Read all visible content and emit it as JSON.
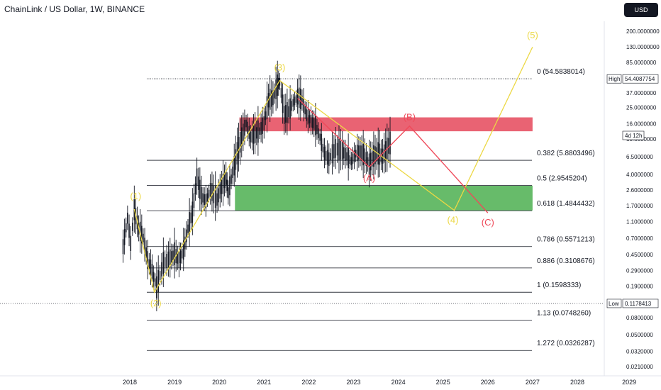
{
  "header": {
    "title": "ChainLink / US Dollar, 1W, BINANCE",
    "currency_button": "USD"
  },
  "colors": {
    "wave": "#ecd844",
    "correction": "#ef4a5a",
    "resistance_zone": "#e5485a",
    "support_zone": "#4caf50",
    "candle": "#131722"
  },
  "chart_data": {
    "type": "line",
    "title": "ChainLink / US Dollar, 1W, BINANCE",
    "scale": "log",
    "y_ticks": [
      200,
      130,
      85,
      37,
      25,
      16,
      10.5,
      6.5,
      4,
      2.6,
      1.7,
      1.1,
      0.7,
      0.45,
      0.29,
      0.19,
      0.08,
      0.05,
      0.032,
      0.021
    ],
    "y_tick_labels": [
      "200.0000000",
      "130.0000000",
      "85.0000000",
      "37.0000000",
      "25.0000000",
      "16.0000000",
      "10.5000000",
      "6.5000000",
      "4.0000000",
      "2.6000000",
      "1.7000000",
      "1.1000000",
      "0.7000000",
      "0.4500000",
      "0.2900000",
      "0.1900000",
      "0.0800000",
      "0.0500000",
      "0.0320000",
      "0.0210000"
    ],
    "x_ticks": [
      "2018",
      "2019",
      "2020",
      "2021",
      "2022",
      "2023",
      "2024",
      "2025",
      "2026",
      "2027",
      "2028",
      "2029"
    ],
    "markers": {
      "high": {
        "label": "High",
        "value": "54.4087754"
      },
      "low": {
        "label": "Low",
        "value": "0.1178413"
      },
      "countdown": "4d 12h"
    },
    "fib_levels": [
      {
        "ratio": "0",
        "value": 54.5838014,
        "label": "0 (54.5838014)"
      },
      {
        "ratio": "0.382",
        "value": 5.8803496,
        "label": "0.382 (5.8803496)"
      },
      {
        "ratio": "0.5",
        "value": 2.9545204,
        "label": "0.5 (2.9545204)"
      },
      {
        "ratio": "0.618",
        "value": 1.4844432,
        "label": "0.618 (1.4844432)"
      },
      {
        "ratio": "0.786",
        "value": 0.5571213,
        "label": "0.786 (0.5571213)"
      },
      {
        "ratio": "0.886",
        "value": 0.3108676,
        "label": "0.886 (0.3108676)"
      },
      {
        "ratio": "1",
        "value": 0.1598333,
        "label": "1 (0.1598333)"
      },
      {
        "ratio": "1.13",
        "value": 0.074826,
        "label": "1.13 (0.0748260)"
      },
      {
        "ratio": "1.272",
        "value": 0.0326287,
        "label": "1.272 (0.0326287)"
      }
    ],
    "zones": [
      {
        "name": "resistance",
        "from": 13,
        "to": 19,
        "x_start": 2020.45,
        "x_end": 2027
      },
      {
        "name": "support",
        "from": 1.49,
        "to": 2.95,
        "x_start": 2020.35,
        "x_end": 2027
      }
    ],
    "impulse_waves": [
      {
        "label": "(1)",
        "x": 2018.1,
        "y": 1.55
      },
      {
        "label": "(2)",
        "x": 2018.55,
        "y": 0.16
      },
      {
        "label": "(3)",
        "x": 2021.35,
        "y": 52
      },
      {
        "label": "(4)",
        "x": 2025.25,
        "y": 1.5
      },
      {
        "label": "(5)",
        "x": 2027,
        "y": 130
      }
    ],
    "impulse_start": {
      "x": 2018.1,
      "y": 1.55
    },
    "correction_waves": [
      {
        "label": "(A)",
        "x": 2023.35,
        "y": 4.9
      },
      {
        "label": "(B)",
        "x": 2024.25,
        "y": 15
      },
      {
        "label": "(C)",
        "x": 2026,
        "y": 1.4
      }
    ],
    "correction_start": {
      "x": 2021.75,
      "y": 32
    },
    "price_path": [
      [
        2017.85,
        0.55
      ],
      [
        2017.95,
        1.2
      ],
      [
        2018.02,
        0.6
      ],
      [
        2018.1,
        1.5
      ],
      [
        2018.2,
        0.9
      ],
      [
        2018.3,
        0.7
      ],
      [
        2018.4,
        0.38
      ],
      [
        2018.5,
        0.28
      ],
      [
        2018.6,
        0.18
      ],
      [
        2018.75,
        0.35
      ],
      [
        2018.9,
        0.4
      ],
      [
        2019.0,
        0.45
      ],
      [
        2019.1,
        0.38
      ],
      [
        2019.2,
        0.5
      ],
      [
        2019.3,
        0.9
      ],
      [
        2019.4,
        1.4
      ],
      [
        2019.5,
        3.7
      ],
      [
        2019.6,
        2.2
      ],
      [
        2019.7,
        1.9
      ],
      [
        2019.8,
        2.6
      ],
      [
        2019.95,
        2.0
      ],
      [
        2020.05,
        2.8
      ],
      [
        2020.15,
        3.6
      ],
      [
        2020.2,
        2.4
      ],
      [
        2020.3,
        4.2
      ],
      [
        2020.4,
        7
      ],
      [
        2020.5,
        11
      ],
      [
        2020.6,
        16
      ],
      [
        2020.7,
        11
      ],
      [
        2020.8,
        12
      ],
      [
        2020.9,
        13
      ],
      [
        2021.0,
        16
      ],
      [
        2021.1,
        30
      ],
      [
        2021.2,
        32
      ],
      [
        2021.3,
        45
      ],
      [
        2021.35,
        50
      ],
      [
        2021.45,
        20
      ],
      [
        2021.55,
        22
      ],
      [
        2021.65,
        28
      ],
      [
        2021.75,
        33
      ],
      [
        2021.85,
        30
      ],
      [
        2021.95,
        20
      ],
      [
        2022.05,
        17
      ],
      [
        2022.15,
        15
      ],
      [
        2022.25,
        11
      ],
      [
        2022.35,
        7
      ],
      [
        2022.45,
        6
      ],
      [
        2022.6,
        8
      ],
      [
        2022.75,
        7.5
      ],
      [
        2022.85,
        6.5
      ],
      [
        2022.95,
        5.7
      ],
      [
        2023.05,
        7
      ],
      [
        2023.15,
        7.3
      ],
      [
        2023.25,
        6.5
      ],
      [
        2023.35,
        5.2
      ],
      [
        2023.45,
        6.5
      ],
      [
        2023.55,
        7
      ],
      [
        2023.65,
        6.5
      ],
      [
        2023.75,
        8
      ],
      [
        2023.85,
        10
      ]
    ]
  }
}
